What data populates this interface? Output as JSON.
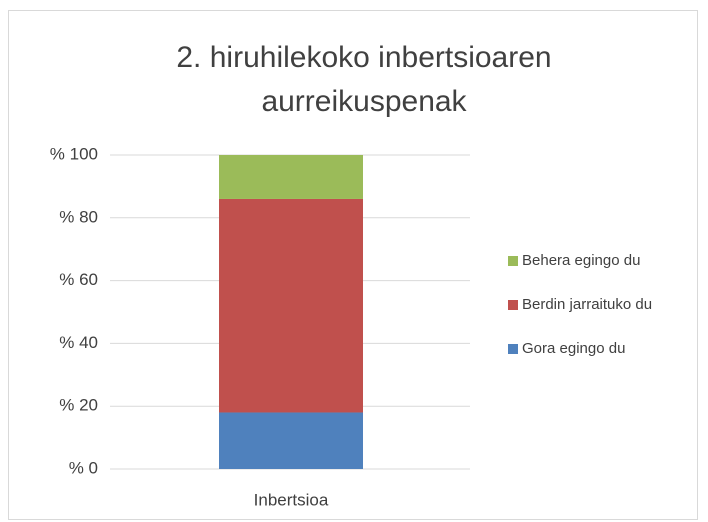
{
  "chart_data": {
    "type": "stacked_bar",
    "title": "2. hiruhilekoko inbertsioaren aurreikuspenak",
    "categories": [
      "Inbertsioa"
    ],
    "series": [
      {
        "name": "Gora egingo du",
        "color": "#4f81bd",
        "values": [
          18
        ]
      },
      {
        "name": "Berdin jarraituko du",
        "color": "#c0504d",
        "values": [
          68
        ]
      },
      {
        "name": "Behera egingo du",
        "color": "#9bbb59",
        "values": [
          14
        ]
      }
    ],
    "ylim": [
      0,
      100
    ],
    "yticks": [
      {
        "value": 0,
        "label": "% 0"
      },
      {
        "value": 20,
        "label": "% 20"
      },
      {
        "value": 40,
        "label": "% 40"
      },
      {
        "value": 60,
        "label": "% 60"
      },
      {
        "value": 80,
        "label": "% 80"
      },
      {
        "value": 100,
        "label": "% 100"
      }
    ],
    "grid": true,
    "legend": "right"
  }
}
